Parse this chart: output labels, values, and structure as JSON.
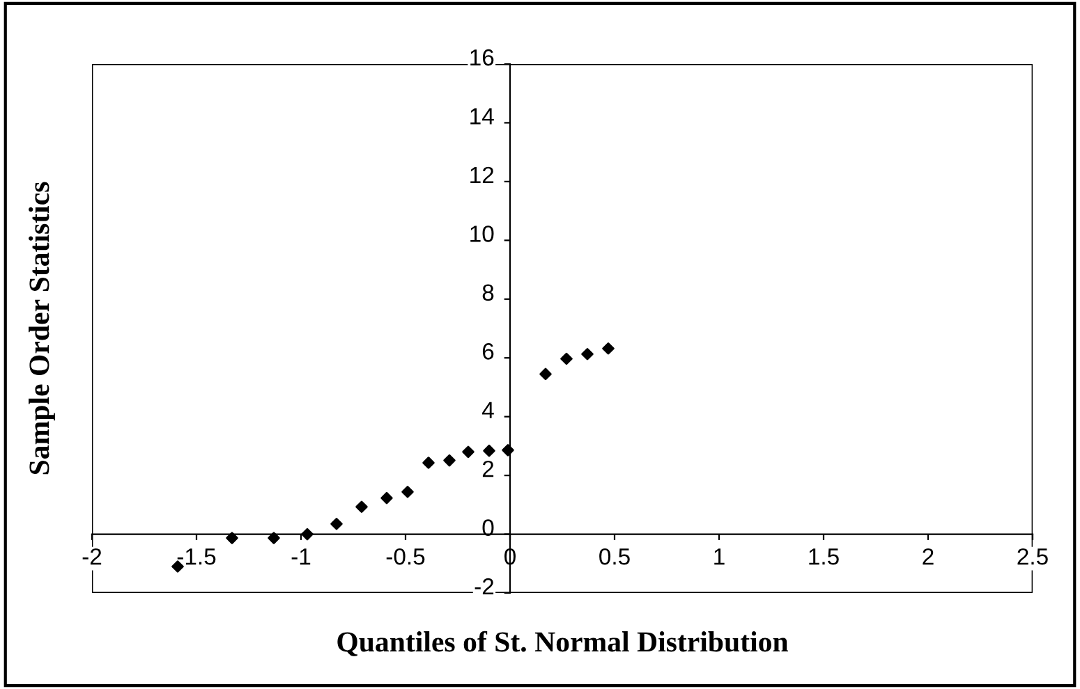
{
  "chart_data": {
    "type": "scatter",
    "xlabel": "Quantiles of St. Normal Distribution",
    "ylabel": "Sample Order Statistics",
    "x": [
      -1.59,
      -1.33,
      -1.13,
      -0.97,
      -0.83,
      -0.71,
      -0.59,
      -0.49,
      -0.39,
      -0.29,
      -0.2,
      -0.1,
      -0.01,
      0.17,
      0.27,
      0.37,
      0.47
    ],
    "values": [
      -1.1,
      -0.13,
      -0.13,
      0.0,
      0.35,
      0.93,
      1.23,
      1.44,
      2.43,
      2.51,
      2.8,
      2.84,
      2.86,
      5.45,
      5.97,
      6.13,
      6.32
    ],
    "color": "#000000",
    "marker": "diamond",
    "xlim": [
      -2,
      2.5
    ],
    "xticks": [
      -2,
      -1.5,
      -1,
      -0.5,
      0,
      0.5,
      1,
      1.5,
      2,
      2.5
    ],
    "ylim": [
      -2,
      16
    ],
    "yticks": [
      -2,
      0,
      2,
      4,
      6,
      8,
      10,
      12,
      14,
      16
    ],
    "grid": false,
    "legend": false
  }
}
